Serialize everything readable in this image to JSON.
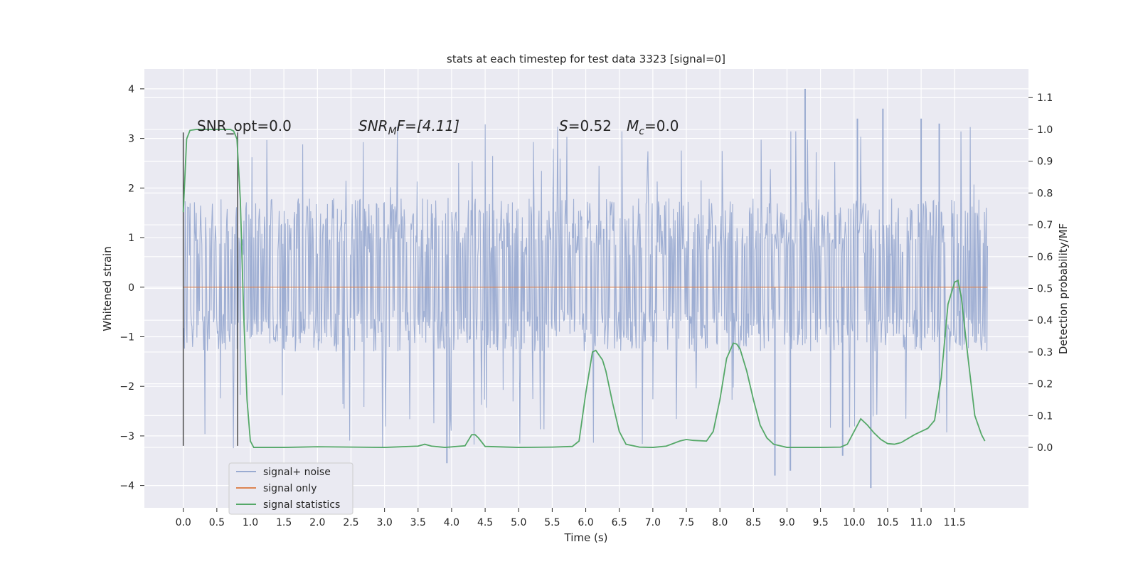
{
  "chart_data": {
    "type": "line",
    "title": "stats at each timestep for test data 3323 [signal=0]",
    "xlabel": "Time (s)",
    "ylabel_left": "Whitened strain",
    "ylabel_right": "Detection probability/MF",
    "xlim": [
      -0.58,
      12.6
    ],
    "ylim_left": [
      -4.45,
      4.4
    ],
    "ylim_right": [
      -0.19,
      1.19
    ],
    "x_ticks": [
      "0.0",
      "0.5",
      "1.0",
      "1.5",
      "2.0",
      "2.5",
      "3.0",
      "3.5",
      "4.0",
      "4.5",
      "5.0",
      "5.5",
      "6.0",
      "6.5",
      "7.0",
      "7.5",
      "8.0",
      "8.5",
      "9.0",
      "9.5",
      "10.0",
      "10.5",
      "11.0",
      "11.5"
    ],
    "y_left_ticks": [
      "4",
      "3",
      "2",
      "1",
      "0",
      "−1",
      "−2",
      "−3",
      "−4"
    ],
    "y_right_ticks": [
      "1.1",
      "1.0",
      "0.9",
      "0.8",
      "0.7",
      "0.6",
      "0.5",
      "0.4",
      "0.3",
      "0.2",
      "0.1",
      "0.0"
    ],
    "grid": true,
    "legend_position": "lower-left",
    "annotations": {
      "snr_opt": "SNR_opt=0.0",
      "snr_mf_main": "SNR",
      "snr_mf_sub": "M",
      "snr_mf_rest": "F=[4.11]",
      "s_main": "S",
      "s_rest": "=0.52",
      "mc_main": "M",
      "mc_sub": "c",
      "mc_rest": "=0.0"
    },
    "vertical_markers_x": [
      0.0,
      0.81
    ],
    "series": [
      {
        "name": "signal+ noise",
        "color": "#9aabd1",
        "description_axis": "left",
        "x_range": [
          0.0,
          11.99
        ],
        "typical_envelope": [
          -1.3,
          1.8
        ],
        "peaks": [
          {
            "x": 9.27,
            "y": 4.0
          },
          {
            "x": 10.25,
            "y": -4.05
          },
          {
            "x": 8.82,
            "y": -3.8
          },
          {
            "x": 9.05,
            "y": -3.7
          },
          {
            "x": 3.93,
            "y": -3.55
          },
          {
            "x": 11.0,
            "y": 3.4
          },
          {
            "x": 10.43,
            "y": 3.6
          },
          {
            "x": 10.05,
            "y": 3.4
          },
          {
            "x": 11.27,
            "y": 3.3
          },
          {
            "x": 9.83,
            "y": -3.4
          }
        ]
      },
      {
        "name": "signal only",
        "color": "#dd8452",
        "description_axis": "left",
        "x": [
          0.0,
          11.99
        ],
        "y": [
          0.0,
          0.0
        ]
      },
      {
        "name": "signal statistics",
        "color": "#55a868",
        "description_axis": "right",
        "x": [
          0.0,
          0.05,
          0.1,
          0.2,
          0.3,
          0.5,
          0.7,
          0.75,
          0.8,
          0.85,
          0.9,
          0.95,
          1.0,
          1.05,
          1.1,
          1.5,
          2.0,
          3.0,
          3.5,
          3.6,
          3.7,
          3.9,
          4.2,
          4.3,
          4.35,
          4.4,
          4.5,
          5.0,
          5.5,
          5.8,
          5.9,
          6.0,
          6.1,
          6.15,
          6.25,
          6.3,
          6.4,
          6.5,
          6.6,
          6.8,
          7.0,
          7.2,
          7.4,
          7.5,
          7.6,
          7.8,
          7.9,
          8.0,
          8.1,
          8.2,
          8.25,
          8.3,
          8.4,
          8.5,
          8.6,
          8.7,
          8.8,
          9.0,
          9.5,
          9.8,
          9.9,
          10.0,
          10.1,
          10.2,
          10.3,
          10.4,
          10.5,
          10.6,
          10.7,
          10.9,
          11.0,
          11.1,
          11.2,
          11.3,
          11.4,
          11.5,
          11.55,
          11.6,
          11.7,
          11.8,
          11.9,
          11.95
        ],
        "y": [
          0.74,
          0.97,
          0.997,
          1.0,
          1.0,
          1.0,
          1.0,
          0.995,
          0.97,
          0.78,
          0.42,
          0.15,
          0.02,
          0.0,
          0.0,
          0.0,
          0.002,
          0.0,
          0.004,
          0.01,
          0.004,
          0.0,
          0.005,
          0.04,
          0.04,
          0.03,
          0.003,
          0.0,
          0.001,
          0.003,
          0.02,
          0.17,
          0.3,
          0.305,
          0.275,
          0.24,
          0.14,
          0.05,
          0.01,
          0.001,
          0.0,
          0.004,
          0.02,
          0.025,
          0.022,
          0.02,
          0.05,
          0.15,
          0.28,
          0.328,
          0.325,
          0.31,
          0.24,
          0.15,
          0.07,
          0.03,
          0.01,
          0.0,
          0.0,
          0.001,
          0.01,
          0.05,
          0.09,
          0.07,
          0.045,
          0.025,
          0.012,
          0.01,
          0.015,
          0.04,
          0.05,
          0.06,
          0.085,
          0.22,
          0.45,
          0.52,
          0.525,
          0.47,
          0.28,
          0.1,
          0.04,
          0.02
        ]
      }
    ]
  }
}
